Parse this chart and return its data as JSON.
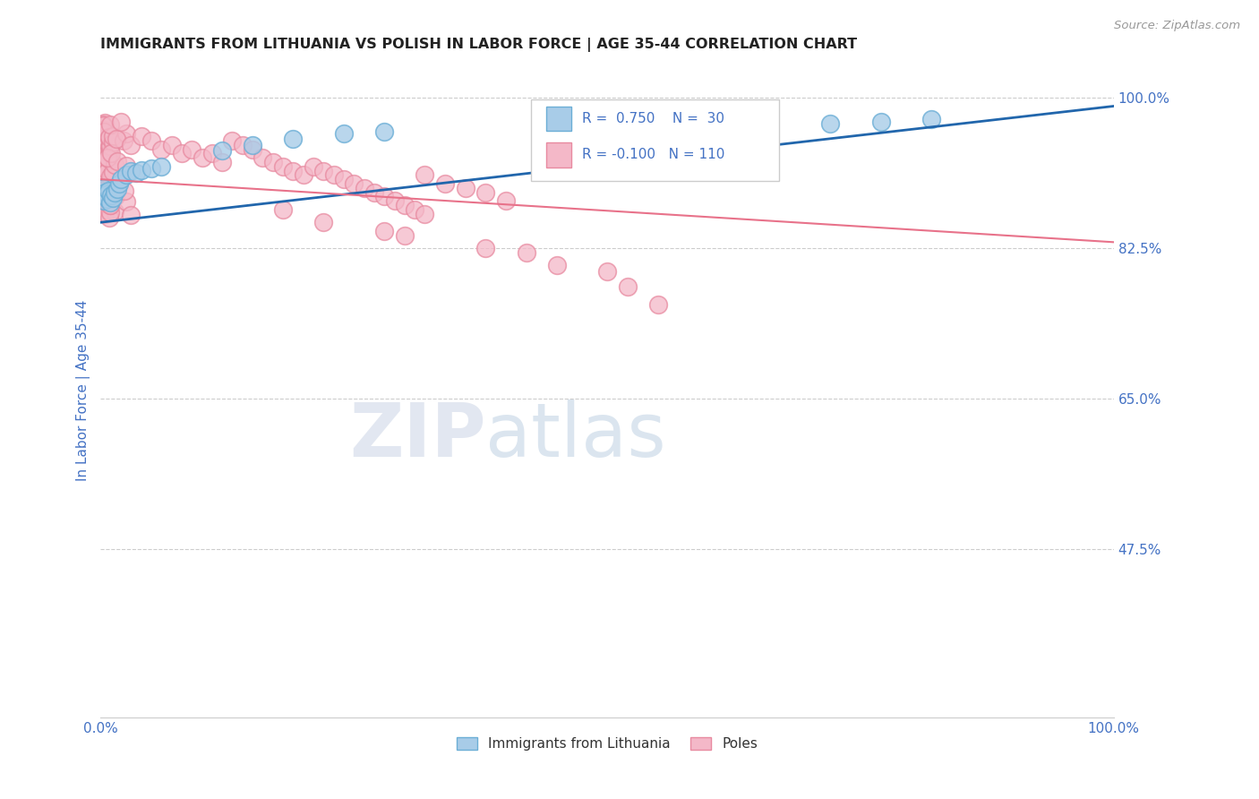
{
  "title": "IMMIGRANTS FROM LITHUANIA VS POLISH IN LABOR FORCE | AGE 35-44 CORRELATION CHART",
  "source": "Source: ZipAtlas.com",
  "ylabel": "In Labor Force | Age 35-44",
  "xlim": [
    0.0,
    1.0
  ],
  "ylim": [
    0.28,
    1.04
  ],
  "yticks": [
    0.475,
    0.65,
    0.825,
    1.0
  ],
  "ytick_labels": [
    "47.5%",
    "65.0%",
    "82.5%",
    "100.0%"
  ],
  "legend_labels": [
    "Immigrants from Lithuania",
    "Poles"
  ],
  "blue_color": "#a8cce8",
  "blue_edge_color": "#6baed6",
  "pink_color": "#f4b8c8",
  "pink_edge_color": "#e88aa0",
  "blue_line_color": "#2166ac",
  "pink_line_color": "#e8728a",
  "R_blue": 0.75,
  "N_blue": 30,
  "R_pink": -0.1,
  "N_pink": 110,
  "watermark_zip": "ZIP",
  "watermark_atlas": "atlas",
  "title_color": "#222222",
  "tick_color": "#4472c4",
  "background_color": "#ffffff",
  "blue_line_start_y": 0.855,
  "blue_line_end_y": 0.99,
  "pink_line_start_y": 0.905,
  "pink_line_end_y": 0.832
}
